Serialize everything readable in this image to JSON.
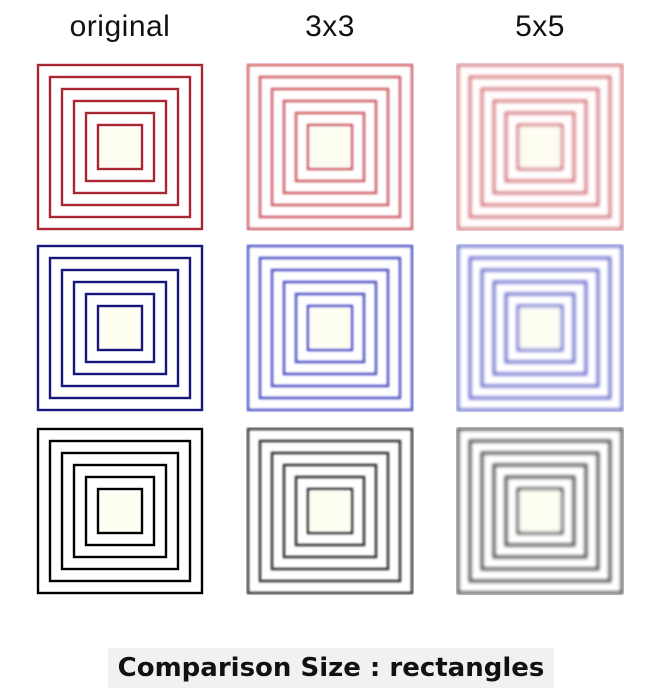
{
  "columns": [
    {
      "key": "original",
      "label": "original",
      "blur": 0
    },
    {
      "key": "k3",
      "label": "3x3",
      "blur": 1
    },
    {
      "key": "k5",
      "label": "5x5",
      "blur": 1.8
    }
  ],
  "rows": [
    {
      "key": "red",
      "color": "#a8262f",
      "blurred_color": "#cc5a62"
    },
    {
      "key": "blue",
      "color": "#14157a",
      "blurred_color": "#4a4fc4"
    },
    {
      "key": "black",
      "color": "#000000",
      "blurred_color": "#2a2a2a"
    }
  ],
  "rings": 6,
  "center_fill": "#fdfdf2",
  "caption": "Comparison Size : rectangles"
}
